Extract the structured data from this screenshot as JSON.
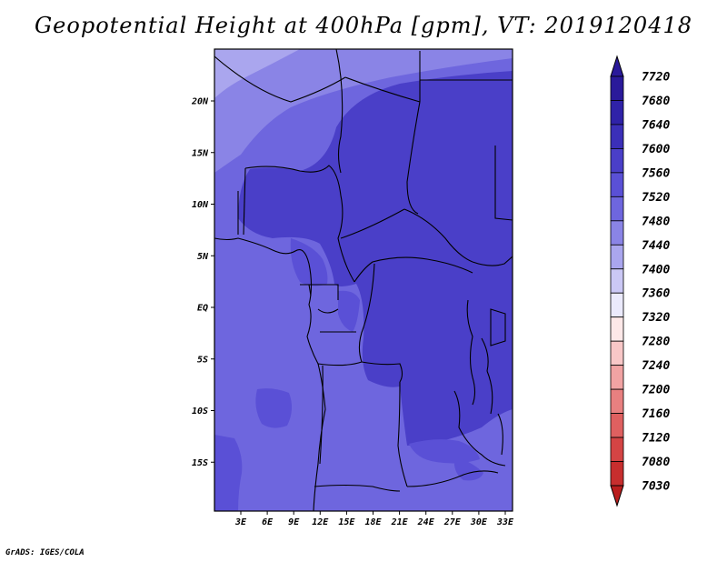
{
  "title": "Geopotential Height at 400hPa [gpm], VT: 2019120418",
  "credit": "GrADS: IGES/COLA",
  "lat_labels": [
    {
      "value": 20,
      "label": "20N"
    },
    {
      "value": 15,
      "label": "15N"
    },
    {
      "value": 10,
      "label": "10N"
    },
    {
      "value": 5,
      "label": "5N"
    },
    {
      "value": 0,
      "label": "EQ"
    },
    {
      "value": -5,
      "label": "5S"
    },
    {
      "value": -10,
      "label": "10S"
    },
    {
      "value": -15,
      "label": "15S"
    }
  ],
  "lon_labels": [
    {
      "value": 3,
      "label": "3E"
    },
    {
      "value": 6,
      "label": "6E"
    },
    {
      "value": 9,
      "label": "9E"
    },
    {
      "value": 12,
      "label": "12E"
    },
    {
      "value": 15,
      "label": "15E"
    },
    {
      "value": 18,
      "label": "18E"
    },
    {
      "value": 21,
      "label": "21E"
    },
    {
      "value": 24,
      "label": "24E"
    },
    {
      "value": 27,
      "label": "27E"
    },
    {
      "value": 30,
      "label": "30E"
    },
    {
      "value": 33,
      "label": "33E"
    }
  ],
  "colorbar": {
    "labels": [
      "7720",
      "7680",
      "7640",
      "7600",
      "7560",
      "7520",
      "7480",
      "7440",
      "7400",
      "7360",
      "7320",
      "7280",
      "7240",
      "7200",
      "7160",
      "7120",
      "7080",
      "7030"
    ],
    "colors": [
      "#2a1a9a",
      "#2f22a8",
      "#3b2fb8",
      "#4a3fc8",
      "#5a50d6",
      "#6e66de",
      "#8a84e6",
      "#aaa6ee",
      "#cbc8f5",
      "#ebeafc",
      "#fde8e8",
      "#f8c7c7",
      "#f1a3a3",
      "#e88080",
      "#df6060",
      "#d44444",
      "#c72e2e",
      "#b91d1d"
    ]
  },
  "field": {
    "colors": {
      "7440": "#aaa6ee",
      "7480": "#8a84e6",
      "7520": "#6e66de",
      "7560": "#5a50d6",
      "7600": "#4a3fc8"
    }
  }
}
